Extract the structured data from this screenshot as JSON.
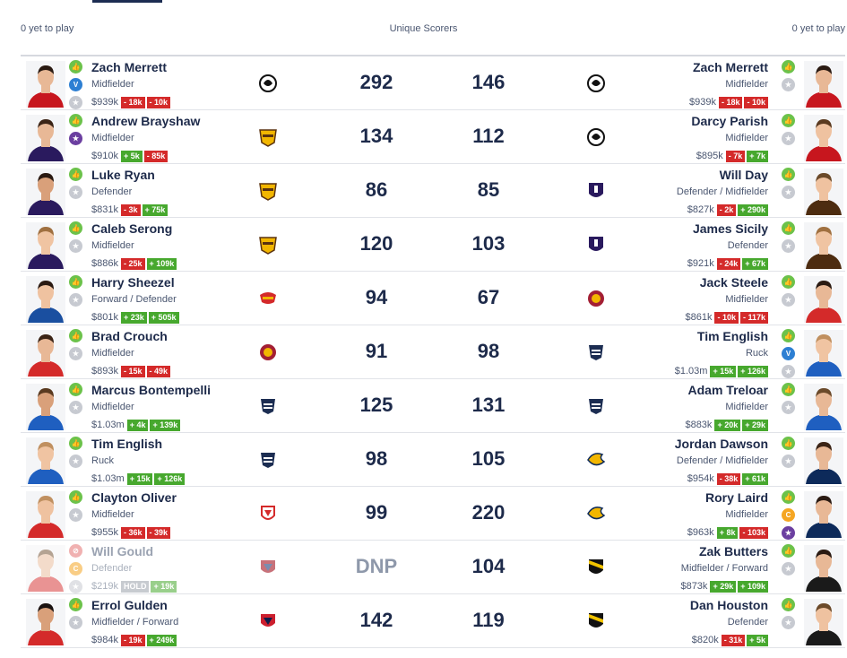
{
  "header": {
    "left_label": "0 yet to play",
    "center_label": "Unique Scorers",
    "right_label": "0 yet to play"
  },
  "colors": {
    "positive": "#47a82e",
    "negative": "#d42a2a",
    "thumb": "#6cc24a",
    "vice": "#2d7fd3",
    "captain": "#f5a623",
    "text": "#1d2a4a"
  },
  "rows": [
    {
      "left": {
        "name": "Zach Merrett",
        "position": "Midfielder",
        "price": "$939k",
        "chg1": "- 18k",
        "chg1_type": "neg",
        "chg2": "- 10k",
        "chg2_type": "neg",
        "icon1": "thumb",
        "icon2": "vice",
        "icon3": "star",
        "club": "collingwood",
        "score": "292",
        "jersey": "#c7161e",
        "skin": "#e8b896",
        "hair": "#2a1a12"
      },
      "right": {
        "name": "Zach Merrett",
        "position": "Midfielder",
        "price": "$939k",
        "chg1": "- 18k",
        "chg1_type": "neg",
        "chg2": "- 10k",
        "chg2_type": "neg",
        "icon1": "thumb",
        "icon2": "star",
        "club": "collingwood",
        "score": "146",
        "jersey": "#c7161e",
        "skin": "#e8b896",
        "hair": "#2a1a12"
      }
    },
    {
      "left": {
        "name": "Andrew Brayshaw",
        "position": "Midfielder",
        "price": "$910k",
        "chg1": "+ 5k",
        "chg1_type": "pos",
        "chg2": "- 85k",
        "chg2_type": "neg",
        "icon1": "thumb",
        "icon2": "vice-star",
        "club": "hawthorn",
        "score": "134",
        "jersey": "#2a1a5e",
        "skin": "#e8b896",
        "hair": "#3b2416"
      },
      "right": {
        "name": "Darcy Parish",
        "position": "Midfielder",
        "price": "$895k",
        "chg1": "- 7k",
        "chg1_type": "neg",
        "chg2": "+ 7k",
        "chg2_type": "pos",
        "icon1": "thumb",
        "icon2": "star",
        "club": "collingwood",
        "score": "112",
        "jersey": "#c7161e",
        "skin": "#efc2a0",
        "hair": "#5a3a20"
      }
    },
    {
      "left": {
        "name": "Luke Ryan",
        "position": "Defender",
        "price": "$831k",
        "chg1": "- 3k",
        "chg1_type": "neg",
        "chg2": "+ 75k",
        "chg2_type": "pos",
        "icon1": "thumb",
        "icon2": "star",
        "club": "hawthorn",
        "score": "86",
        "jersey": "#2a1a5e",
        "skin": "#d9a07a",
        "hair": "#2a1a12"
      },
      "right": {
        "name": "Will Day",
        "position": "Defender / Midfielder",
        "price": "$827k",
        "chg1": "- 2k",
        "chg1_type": "neg",
        "chg2": "+ 290k",
        "chg2_type": "pos",
        "icon1": "thumb",
        "icon2": "star",
        "club": "fremantle",
        "score": "85",
        "jersey": "#4d2c10",
        "skin": "#efc2a0",
        "hair": "#6b4a2a"
      }
    },
    {
      "left": {
        "name": "Caleb Serong",
        "position": "Midfielder",
        "price": "$886k",
        "chg1": "- 25k",
        "chg1_type": "neg",
        "chg2": "+ 109k",
        "chg2_type": "pos",
        "icon1": "thumb",
        "icon2": "star",
        "club": "hawthorn",
        "score": "120",
        "jersey": "#2a1a5e",
        "skin": "#f0c4a2",
        "hair": "#a07040"
      },
      "right": {
        "name": "James Sicily",
        "position": "Defender",
        "price": "$921k",
        "chg1": "- 24k",
        "chg1_type": "neg",
        "chg2": "+ 67k",
        "chg2_type": "pos",
        "icon1": "thumb",
        "icon2": "star",
        "club": "fremantle",
        "score": "103",
        "jersey": "#4d2c10",
        "skin": "#f0c4a2",
        "hair": "#a07040"
      }
    },
    {
      "left": {
        "name": "Harry Sheezel",
        "position": "Forward / Defender",
        "price": "$801k",
        "chg1": "+ 23k",
        "chg1_type": "pos",
        "chg2": "+ 505k",
        "chg2_type": "pos",
        "icon1": "thumb",
        "icon2": "star",
        "club": "goldcoast",
        "score": "94",
        "jersey": "#1a4fa0",
        "skin": "#efc2a0",
        "hair": "#2a1a12"
      },
      "right": {
        "name": "Jack Steele",
        "position": "Midfielder",
        "price": "$861k",
        "chg1": "- 10k",
        "chg1_type": "neg",
        "chg2": "- 117k",
        "chg2_type": "neg",
        "icon1": "thumb",
        "icon2": "star",
        "club": "brisbane",
        "score": "67",
        "jersey": "#d42a2a",
        "skin": "#e8b896",
        "hair": "#2a1a12"
      }
    },
    {
      "left": {
        "name": "Brad Crouch",
        "position": "Midfielder",
        "price": "$893k",
        "chg1": "- 15k",
        "chg1_type": "neg",
        "chg2": "- 49k",
        "chg2_type": "neg",
        "icon1": "thumb",
        "icon2": "star",
        "club": "brisbane",
        "score": "91",
        "jersey": "#d42a2a",
        "skin": "#e8b896",
        "hair": "#3b2416"
      },
      "right": {
        "name": "Tim English",
        "position": "Ruck",
        "price": "$1.03m",
        "chg1": "+ 15k",
        "chg1_type": "pos",
        "chg2": "+ 126k",
        "chg2_type": "pos",
        "icon1": "thumb",
        "icon2": "vice",
        "icon3": "star",
        "club": "geelong",
        "score": "98",
        "jersey": "#1f5fc0",
        "skin": "#f0c4a2",
        "hair": "#c09060"
      }
    },
    {
      "left": {
        "name": "Marcus Bontempelli",
        "position": "Midfielder",
        "price": "$1.03m",
        "chg1": "+ 4k",
        "chg1_type": "pos",
        "chg2": "+ 139k",
        "chg2_type": "pos",
        "icon1": "thumb",
        "icon2": "star",
        "club": "geelong",
        "score": "125",
        "jersey": "#1f5fc0",
        "skin": "#d9a07a",
        "hair": "#5a3a20"
      },
      "right": {
        "name": "Adam Treloar",
        "position": "Midfielder",
        "price": "$883k",
        "chg1": "+ 20k",
        "chg1_type": "pos",
        "chg2": "+ 29k",
        "chg2_type": "pos",
        "icon1": "thumb",
        "icon2": "star",
        "club": "geelong",
        "score": "131",
        "jersey": "#1f5fc0",
        "skin": "#e8b896",
        "hair": "#6b4a2a"
      }
    },
    {
      "left": {
        "name": "Tim English",
        "position": "Ruck",
        "price": "$1.03m",
        "chg1": "+ 15k",
        "chg1_type": "pos",
        "chg2": "+ 126k",
        "chg2_type": "pos",
        "icon1": "thumb",
        "icon2": "star",
        "club": "geelong",
        "score": "98",
        "jersey": "#1f5fc0",
        "skin": "#f0c4a2",
        "hair": "#c09060"
      },
      "right": {
        "name": "Jordan Dawson",
        "position": "Defender / Midfielder",
        "price": "$954k",
        "chg1": "- 38k",
        "chg1_type": "neg",
        "chg2": "+ 61k",
        "chg2_type": "pos",
        "icon1": "thumb",
        "icon2": "star",
        "club": "westcoast",
        "score": "105",
        "jersey": "#0d2a5a",
        "skin": "#e8b896",
        "hair": "#3b2416"
      }
    },
    {
      "left": {
        "name": "Clayton Oliver",
        "position": "Midfielder",
        "price": "$955k",
        "chg1": "- 36k",
        "chg1_type": "neg",
        "chg2": "- 39k",
        "chg2_type": "neg",
        "icon1": "thumb",
        "icon2": "star",
        "club": "sydney",
        "score": "99",
        "jersey": "#d42a2a",
        "skin": "#efc2a0",
        "hair": "#c09060"
      },
      "right": {
        "name": "Rory Laird",
        "position": "Midfielder",
        "price": "$963k",
        "chg1": "+ 8k",
        "chg1_type": "pos",
        "chg2": "- 103k",
        "chg2_type": "neg",
        "icon1": "thumb",
        "icon2": "captain",
        "icon3": "vice-star",
        "club": "westcoast",
        "score": "220",
        "jersey": "#0d2a5a",
        "skin": "#e8b896",
        "hair": "#2a1a12"
      }
    },
    {
      "faded": true,
      "left": {
        "name": "Will Gould",
        "position": "Defender",
        "price": "$219k",
        "chg1": "HOLD",
        "chg1_type": "hold",
        "chg2": "+ 19k",
        "chg2_type": "pos",
        "icon1": "dnp",
        "icon2": "captain",
        "icon3": "star",
        "club": "melbourne-light",
        "score": "DNP",
        "jersey": "#d42a2a",
        "skin": "#e8b896",
        "hair": "#6b4a2a"
      },
      "right": {
        "name": "Zak Butters",
        "position": "Midfielder / Forward",
        "price": "$873k",
        "chg1": "+ 29k",
        "chg1_type": "pos",
        "chg2": "+ 109k",
        "chg2_type": "pos",
        "icon1": "thumb",
        "icon2": "star",
        "club": "richmond",
        "score": "104",
        "jersey": "#1a1a1a",
        "skin": "#e8b896",
        "hair": "#2a1a12"
      }
    },
    {
      "left": {
        "name": "Errol Gulden",
        "position": "Midfielder / Forward",
        "price": "$984k",
        "chg1": "- 19k",
        "chg1_type": "neg",
        "chg2": "+ 249k",
        "chg2_type": "pos",
        "icon1": "thumb",
        "icon2": "star",
        "club": "melbourne",
        "score": "142",
        "jersey": "#d42a2a",
        "skin": "#d9a07a",
        "hair": "#1a1210"
      },
      "right": {
        "name": "Dan Houston",
        "position": "Defender",
        "price": "$820k",
        "chg1": "- 31k",
        "chg1_type": "neg",
        "chg2": "+ 5k",
        "chg2_type": "pos",
        "icon1": "thumb",
        "icon2": "star",
        "club": "richmond",
        "score": "119",
        "jersey": "#1a1a1a",
        "skin": "#efc2a0",
        "hair": "#6b4a2a"
      }
    }
  ]
}
